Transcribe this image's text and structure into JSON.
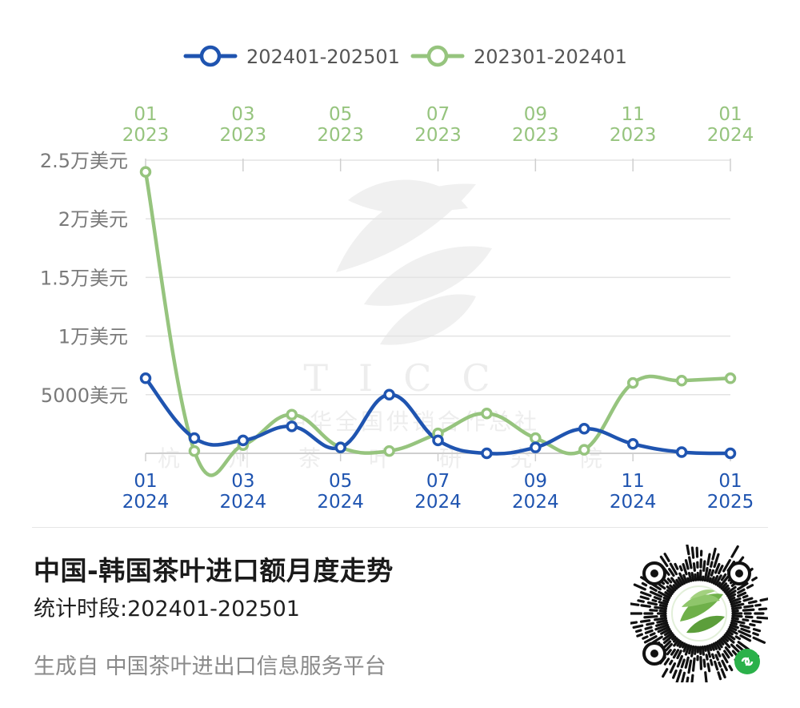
{
  "chart_data": {
    "type": "line",
    "legend_position": "top",
    "series": [
      {
        "name": "202401-202501",
        "color": "#1f54b0",
        "axis": "bottom",
        "x": [
          "2024-01",
          "2024-02",
          "2024-03",
          "2024-04",
          "2024-05",
          "2024-06",
          "2024-07",
          "2024-08",
          "2024-09",
          "2024-10",
          "2024-11",
          "2024-12",
          "2025-01"
        ],
        "values": [
          6400,
          1300,
          1100,
          2300,
          500,
          5000,
          1100,
          0,
          500,
          2100,
          800,
          100,
          0
        ]
      },
      {
        "name": "202301-202401",
        "color": "#96c47e",
        "axis": "top",
        "x": [
          "2023-01",
          "2023-02",
          "2023-03",
          "2023-04",
          "2023-05",
          "2023-06",
          "2023-07",
          "2023-08",
          "2023-09",
          "2023-10",
          "2023-11",
          "2023-12",
          "2024-01"
        ],
        "values": [
          24000,
          200,
          700,
          3300,
          500,
          200,
          1700,
          3400,
          1300,
          300,
          6000,
          6200,
          6400
        ]
      }
    ],
    "ylim": [
      0,
      25000
    ],
    "y_ticks": [
      {
        "value": 5000,
        "label": "5000美元"
      },
      {
        "value": 10000,
        "label": "1万美元"
      },
      {
        "value": 15000,
        "label": "1.5万美元"
      },
      {
        "value": 20000,
        "label": "2万美元"
      },
      {
        "value": 25000,
        "label": "2.5万美元"
      }
    ],
    "x_bottom_ticks": [
      {
        "index": 0,
        "month": "01",
        "year": "2024"
      },
      {
        "index": 2,
        "month": "03",
        "year": "2024"
      },
      {
        "index": 4,
        "month": "05",
        "year": "2024"
      },
      {
        "index": 6,
        "month": "07",
        "year": "2024"
      },
      {
        "index": 8,
        "month": "09",
        "year": "2024"
      },
      {
        "index": 10,
        "month": "11",
        "year": "2024"
      },
      {
        "index": 12,
        "month": "01",
        "year": "2025"
      }
    ],
    "x_top_ticks": [
      {
        "index": 0,
        "month": "01",
        "year": "2023"
      },
      {
        "index": 2,
        "month": "03",
        "year": "2023"
      },
      {
        "index": 4,
        "month": "05",
        "year": "2023"
      },
      {
        "index": 6,
        "month": "07",
        "year": "2023"
      },
      {
        "index": 8,
        "month": "09",
        "year": "2023"
      },
      {
        "index": 10,
        "month": "11",
        "year": "2023"
      },
      {
        "index": 12,
        "month": "01",
        "year": "2024"
      }
    ],
    "grid": true,
    "watermark": {
      "letters": "TICC",
      "org_line1": "中华全国供销合作总社",
      "org_line2": "杭州茶叶研究院"
    }
  },
  "footer": {
    "title": "中国-韩国茶叶进口额月度走势",
    "period": "统计时段:202401-202501",
    "source": "生成自 中国茶叶进出口信息服务平台"
  },
  "colors": {
    "blue": "#1f54b0",
    "green": "#96c47e",
    "top_axis_text": "#96c47e",
    "bottom_axis_text": "#1f54b0"
  }
}
